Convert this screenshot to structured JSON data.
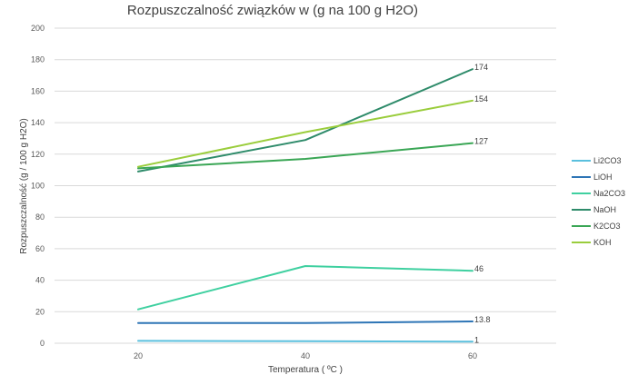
{
  "chart_data": {
    "type": "line",
    "title": "Rozpuszczalność związków w (g na 100 g H2O)",
    "xlabel": "Temperatura ( ºC )",
    "ylabel": "Rozpuszczalność (g / 100 g H2O)",
    "x": [
      20,
      40,
      60
    ],
    "ylim": [
      0,
      200
    ],
    "yticks": [
      0,
      20,
      40,
      60,
      80,
      100,
      120,
      140,
      160,
      180,
      200
    ],
    "grid": "horizontal",
    "legend_position": "right",
    "series": [
      {
        "name": "Li2CO3",
        "color": "#5bc0de",
        "values": [
          1.5,
          1.3,
          1
        ],
        "end_label": "1"
      },
      {
        "name": "LiOH",
        "color": "#2e75b6",
        "values": [
          12.8,
          12.8,
          13.8
        ],
        "end_label": "13.8"
      },
      {
        "name": "Na2CO3",
        "color": "#3fd0a0",
        "values": [
          21.5,
          49,
          46
        ],
        "end_label": "46"
      },
      {
        "name": "NaOH",
        "color": "#2e8b6a",
        "values": [
          109,
          129,
          174
        ],
        "end_label": "174"
      },
      {
        "name": "K2CO3",
        "color": "#3aa655",
        "values": [
          111,
          117,
          127
        ],
        "end_label": "127"
      },
      {
        "name": "KOH",
        "color": "#9acd3c",
        "values": [
          112,
          134,
          154
        ],
        "end_label": "154"
      }
    ]
  }
}
